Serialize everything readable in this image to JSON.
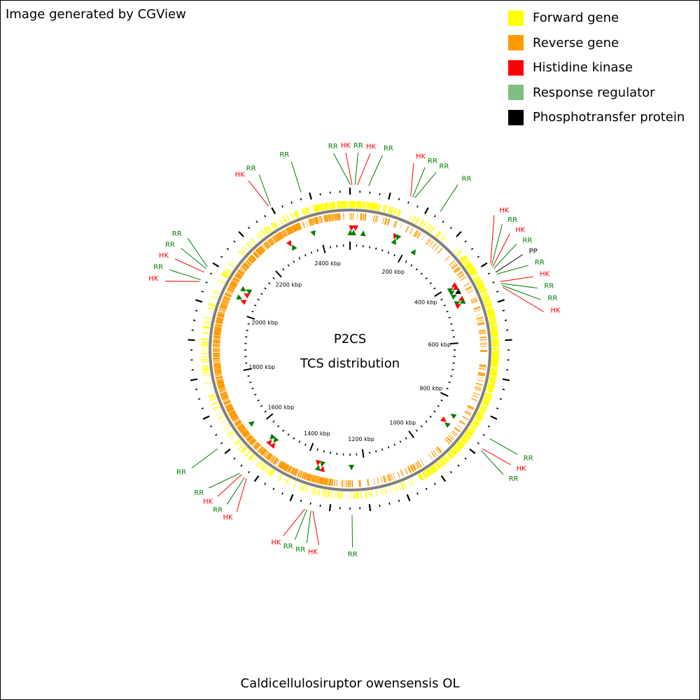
{
  "credit": "Image generated by CGView",
  "caption": "Caldicellulosiruptor owensensis OL",
  "center": {
    "line1": "P2CS",
    "line2": "TCS distribution"
  },
  "legend": [
    {
      "label": "Forward gene",
      "color": "#ffff00"
    },
    {
      "label": "Reverse gene",
      "color": "#ff9900"
    },
    {
      "label": "Histidine kinase",
      "color": "#ff0000"
    },
    {
      "label": "Response regulator",
      "color": "#7fbf7f"
    },
    {
      "label": "Phosphotransfer protein",
      "color": "#000000"
    }
  ],
  "colors": {
    "forward": "#ffff00",
    "reverse": "#ff9900",
    "backbone": "#808080",
    "hk": "#ff0000",
    "rr": "#007f00",
    "pp": "#000000"
  },
  "genome": {
    "length_kbp": 2500,
    "tick_labels": [
      "200 kbp",
      "400 kbp",
      "600 kbp",
      "800 kbp",
      "1000 kbp",
      "1200 kbp",
      "1400 kbp",
      "1600 kbp",
      "1800 kbp",
      "2000 kbp",
      "2200 kbp",
      "2400 kbp"
    ]
  },
  "tcs": [
    {
      "t": "RR",
      "kbp": 1
    },
    {
      "t": "HK",
      "kbp": 5
    },
    {
      "t": "RR",
      "kbp": 12
    },
    {
      "t": "HK",
      "kbp": 18
    },
    {
      "t": "RR",
      "kbp": 45
    },
    {
      "t": "HK",
      "kbp": 150
    },
    {
      "t": "RR",
      "kbp": 155
    },
    {
      "t": "RR",
      "kbp": 160
    },
    {
      "t": "RR",
      "kbp": 230
    },
    {
      "t": "HK",
      "kbp": 405
    },
    {
      "t": "RR",
      "kbp": 410
    },
    {
      "t": "HK",
      "kbp": 415
    },
    {
      "t": "RR",
      "kbp": 420
    },
    {
      "t": "PP",
      "kbp": 430
    },
    {
      "t": "RR",
      "kbp": 435
    },
    {
      "t": "HK",
      "kbp": 455
    },
    {
      "t": "RR",
      "kbp": 460
    },
    {
      "t": "RR",
      "kbp": 465
    },
    {
      "t": "HK",
      "kbp": 470
    },
    {
      "t": "RR",
      "kbp": 850
    },
    {
      "t": "HK",
      "kbp": 880
    },
    {
      "t": "RR",
      "kbp": 885
    },
    {
      "t": "RR",
      "kbp": 1245
    },
    {
      "t": "HK",
      "kbp": 1340
    },
    {
      "t": "RR",
      "kbp": 1345
    },
    {
      "t": "RR",
      "kbp": 1355
    },
    {
      "t": "HK",
      "kbp": 1360
    },
    {
      "t": "HK",
      "kbp": 1520
    },
    {
      "t": "RR",
      "kbp": 1525
    },
    {
      "t": "HK",
      "kbp": 1535
    },
    {
      "t": "RR",
      "kbp": 1540
    },
    {
      "t": "RR",
      "kbp": 1620
    },
    {
      "t": "HK",
      "kbp": 2045
    },
    {
      "t": "RR",
      "kbp": 2050
    },
    {
      "t": "HK",
      "kbp": 2070
    },
    {
      "t": "RR",
      "kbp": 2080
    },
    {
      "t": "RR",
      "kbp": 2085
    },
    {
      "t": "HK",
      "kbp": 2295
    },
    {
      "t": "RR",
      "kbp": 2300
    },
    {
      "t": "RR",
      "kbp": 2380
    }
  ]
}
